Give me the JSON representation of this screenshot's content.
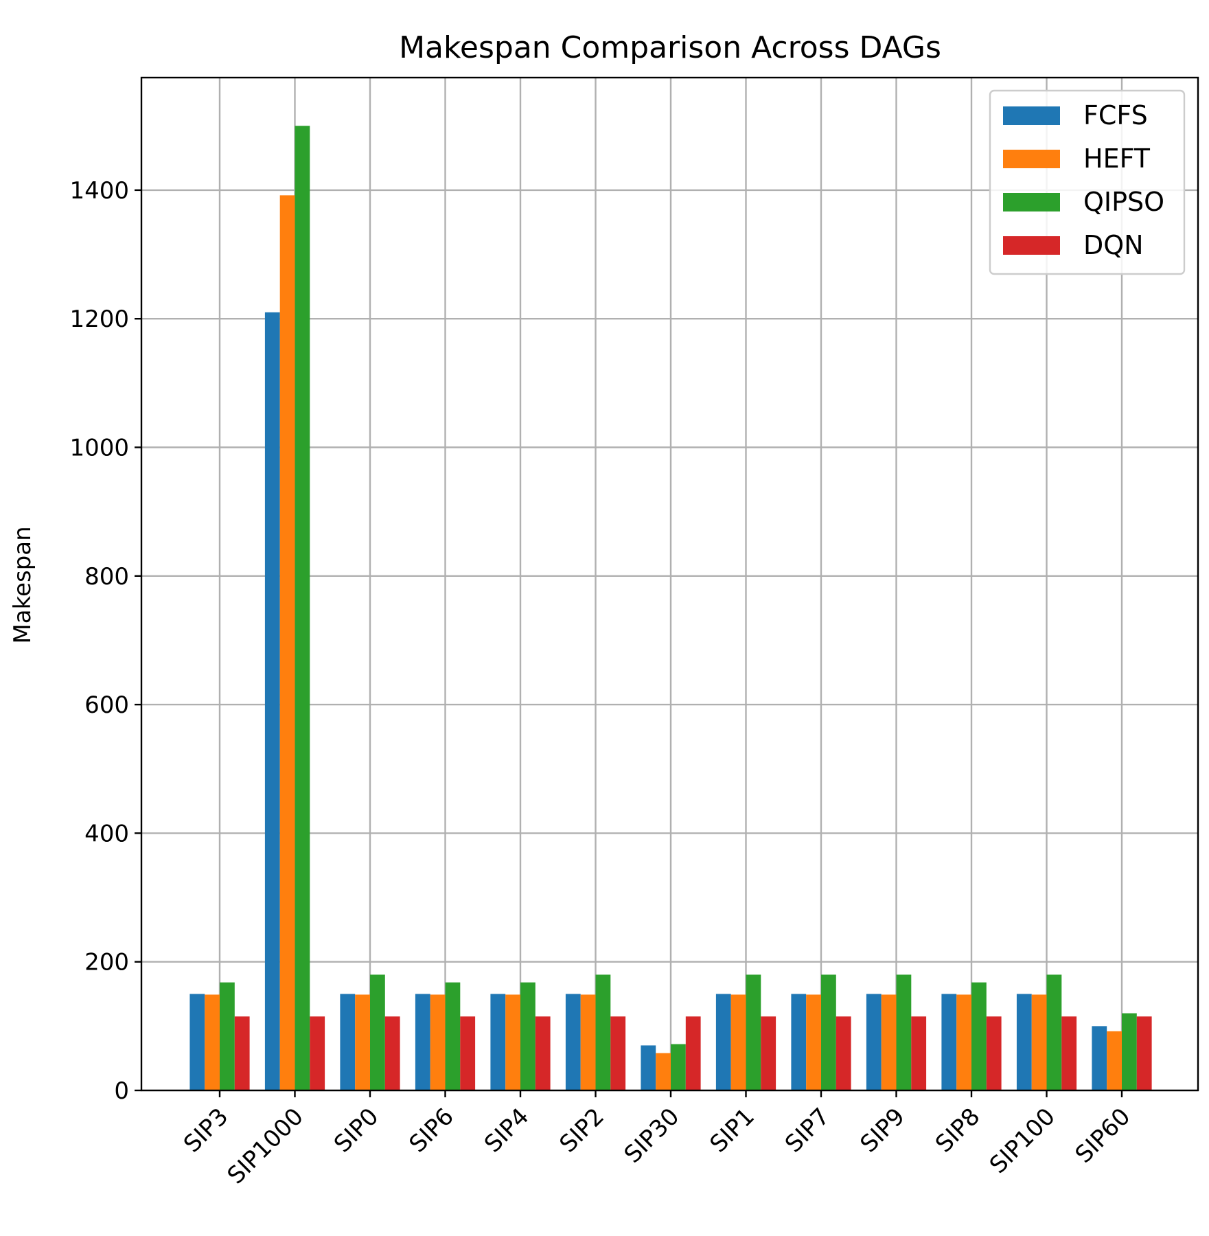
{
  "chart_data": {
    "type": "bar",
    "title": "Makespan Comparison Across DAGs",
    "xlabel": "",
    "ylabel": "Makespan",
    "categories": [
      "SIP3",
      "SIP1000",
      "SIP0",
      "SIP6",
      "SIP4",
      "SIP2",
      "SIP30",
      "SIP1",
      "SIP7",
      "SIP9",
      "SIP8",
      "SIP100",
      "SIP60"
    ],
    "series": [
      {
        "name": "FCFS",
        "color": "#1f77b4",
        "values": [
          150,
          1210,
          150,
          150,
          150,
          150,
          70,
          150,
          150,
          150,
          150,
          150,
          100
        ]
      },
      {
        "name": "HEFT",
        "color": "#ff7f0e",
        "values": [
          149,
          1392,
          149,
          149,
          149,
          149,
          58,
          149,
          149,
          149,
          149,
          149,
          92
        ]
      },
      {
        "name": "QIPSO",
        "color": "#2ca02c",
        "values": [
          168,
          1500,
          180,
          168,
          168,
          180,
          72,
          180,
          180,
          180,
          168,
          180,
          120
        ]
      },
      {
        "name": "DQN",
        "color": "#d62728",
        "values": [
          115,
          115,
          115,
          115,
          115,
          115,
          115,
          115,
          115,
          115,
          115,
          115,
          115
        ]
      }
    ],
    "yticks": [
      0,
      200,
      400,
      600,
      800,
      1000,
      1200,
      1400
    ],
    "ylim": [
      0,
      1575
    ],
    "grid": true,
    "legend": "top-right"
  }
}
